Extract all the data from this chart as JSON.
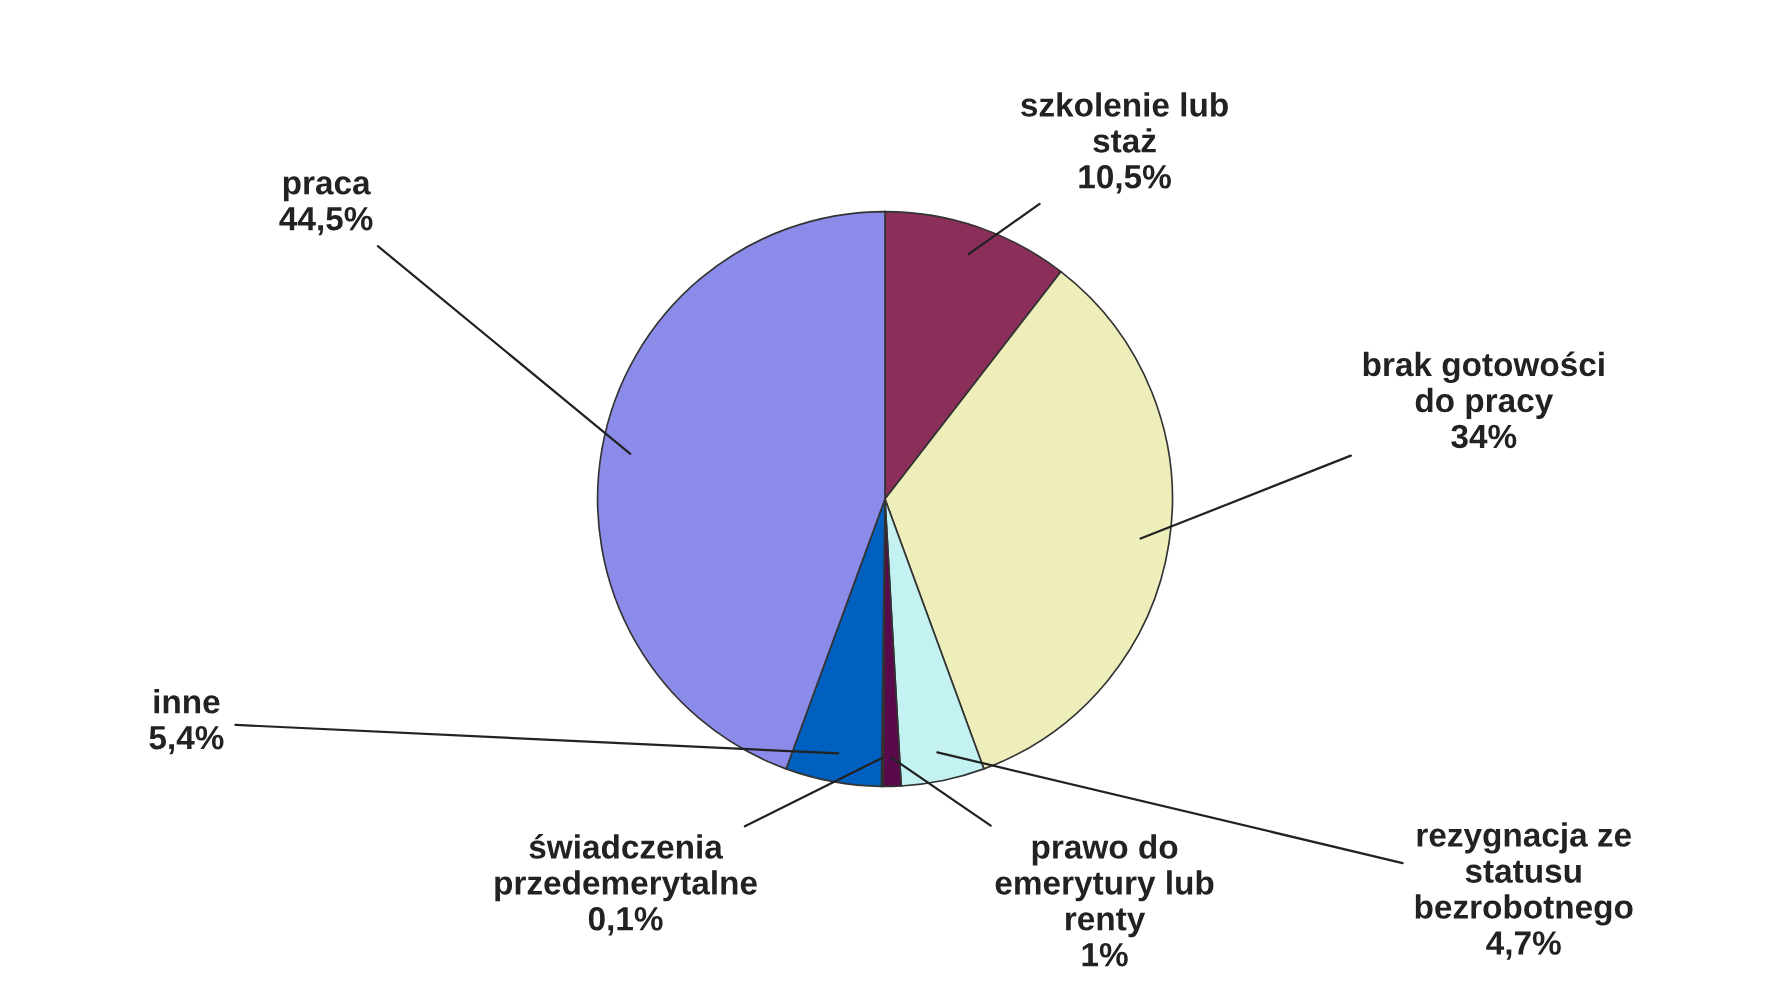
{
  "chart_data": {
    "type": "pie",
    "categories": [
      "szkolenie lub\nstaż",
      "brak gotowości\ndo pracy",
      "rezygnacja ze\nstatusu\nbezrobotnego",
      "prawo do\nemerytury lub\nrenty",
      "świadczenia\nprzedemerytalne",
      "inne",
      "praca"
    ],
    "values": [
      10.5,
      34,
      4.7,
      1,
      0.1,
      5.4,
      44.5
    ],
    "value_labels": [
      "10,5%",
      "34%",
      "4,7%",
      "1%",
      "0,1%",
      "5,4%",
      "44,5%"
    ],
    "colors": [
      "#8b2e5a",
      "#eeeebb",
      "#c4f2f2",
      "#5a0a4a",
      "#3a0a3a",
      "#0060c0",
      "#8b8bea"
    ]
  }
}
